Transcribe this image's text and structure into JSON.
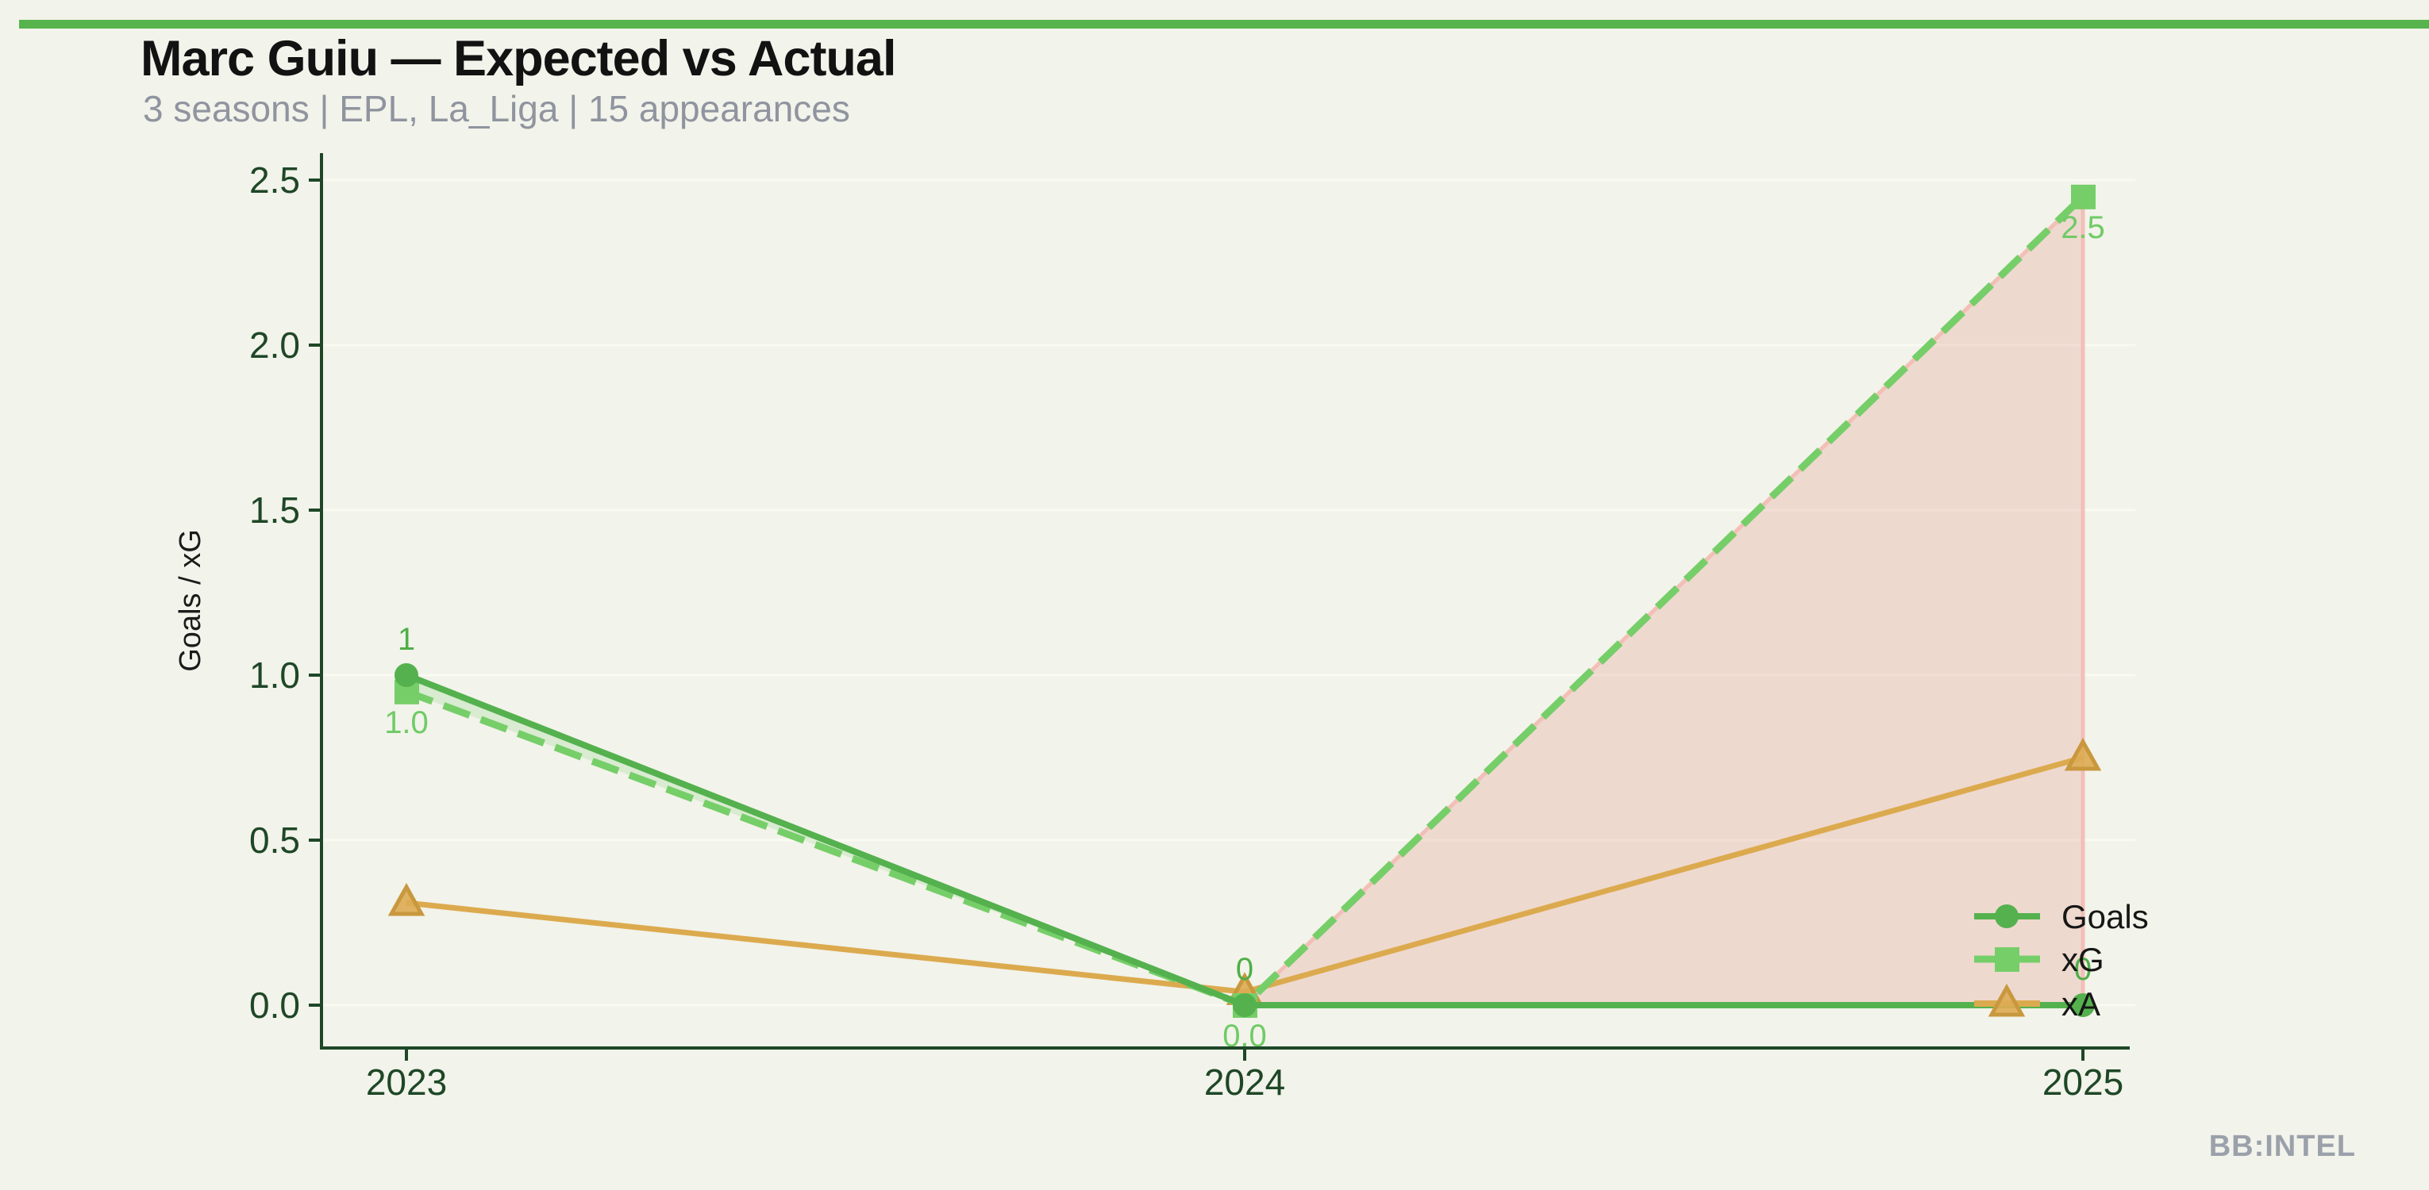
{
  "page": {
    "background": "#f2f3ea",
    "accent_color": "#57b44d",
    "watermark": "BB:INTEL"
  },
  "header": {
    "title": "Marc Guiu — Expected vs Actual",
    "subtitle": "3 seasons | EPL, La_Liga | 15 appearances"
  },
  "chart_data": {
    "type": "line",
    "title": "Marc Guiu — Expected vs Actual",
    "xlabel": "",
    "ylabel": "Goals / xG",
    "categories": [
      "2023",
      "2024",
      "2025"
    ],
    "y_ticks": [
      0.0,
      0.5,
      1.0,
      1.5,
      2.0,
      2.5
    ],
    "y_tick_labels": [
      "0.0",
      "0.5",
      "1.0",
      "1.5",
      "2.0",
      "2.5"
    ],
    "ylim": [
      -0.15,
      2.6
    ],
    "grid": "horizontal-faint",
    "legend_position": "lower-right",
    "series": [
      {
        "name": "Goals",
        "values": [
          1,
          0,
          0
        ],
        "point_labels": [
          "1",
          "0",
          "0"
        ],
        "label_side": "above",
        "line_style": "solid",
        "marker": "circle",
        "color": "#54b14e",
        "label_color": "#4fae48"
      },
      {
        "name": "xG",
        "values": [
          0.95,
          0.0,
          2.45
        ],
        "point_labels": [
          "1.0",
          "0.0",
          "2.5"
        ],
        "label_side": "below",
        "line_style": "dashed",
        "marker": "square",
        "color": "#76ce69",
        "label_color": "#6fcb65"
      },
      {
        "name": "xA",
        "values": [
          0.31,
          0.04,
          0.75
        ],
        "point_labels": [
          "",
          "",
          ""
        ],
        "label_side": "none",
        "line_style": "solid",
        "marker": "triangle",
        "color": "#dcaa4e",
        "label_color": "#c9983e"
      }
    ],
    "fills": [
      {
        "name": "overperformance-band",
        "upper": "Goals",
        "lower": "xG",
        "from": 0,
        "to": 1,
        "fill": "rgba(118,206,105,0.20)",
        "stroke": "none"
      },
      {
        "name": "underperformance-band",
        "upper": "xG",
        "lower": "Goals",
        "from": 1,
        "to": 2,
        "fill": "rgba(230,146,135,0.27)",
        "stroke": "rgba(242,186,178,0.9)"
      }
    ],
    "legend": [
      {
        "label": "Goals"
      },
      {
        "label": "xG"
      },
      {
        "label": "xA"
      }
    ]
  }
}
